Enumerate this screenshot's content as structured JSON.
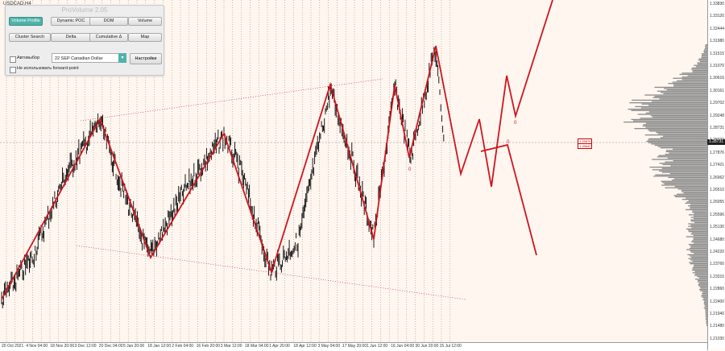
{
  "chart": {
    "symbol": "USDCAD,H4",
    "current_price": "1.28731",
    "levels": [
      "1.28870",
      "1.28642"
    ],
    "price_ticks": [
      "1.33830",
      "1.33120",
      "1.32444",
      "1.31980",
      "1.31515",
      "1.31070",
      "1.30616",
      "1.30161",
      "1.29702",
      "1.29248",
      "1.28731",
      "1.28339",
      "1.27876",
      "1.27421",
      "1.26962",
      "1.26510",
      "1.26055",
      "1.25596",
      "1.25130",
      "1.24680",
      "1.24220",
      "1.23760",
      "1.23310",
      "1.22860",
      "1.22400",
      "1.21940",
      "1.21480",
      "1.21030"
    ],
    "time_ticks": [
      "20 Oct 2021",
      "4 Nov 04:00",
      "18 Nov 20:00",
      "3 Dec 12:00",
      "20 Dec 04:00",
      "5 Jan 20:00",
      "18 Jan 12:00",
      "2 Feb 04:00",
      "16 Feb 20:00",
      "3 Mar 12:00",
      "18 Mar 04:00",
      "1 Apr 20:00",
      "18 Apr 12:00",
      "3 May 04:00",
      "17 May 20:00",
      "1 Jun 12:00",
      "16 Jun 04:00",
      "30 Jun 20:00",
      "15 Jul 12:00"
    ],
    "marker_text": [
      "0",
      "0",
      "0"
    ],
    "colors": {
      "bg": "#fff6ef",
      "zigzag": "#d0141e",
      "grid": "#555555",
      "profile": "#8c8c8c"
    }
  },
  "panel": {
    "title": "ProVolume 2.05",
    "buttons": {
      "volume_profile": "Volume Profile",
      "dynamic_poc": "Dynamic POC",
      "dom": "DOM",
      "volume": "Volume",
      "cluster_search": "Cluster Search",
      "delta": "Delta",
      "cumulative_delta": "Cumulative Δ",
      "map": "Map"
    },
    "auto_label": "Автовыбор",
    "instrument": "22 SEP Canadian Dollar",
    "settings_label": "Настройки",
    "forward_point_label": "Не использовать forward-point",
    "accent": "#4fb3a9"
  }
}
